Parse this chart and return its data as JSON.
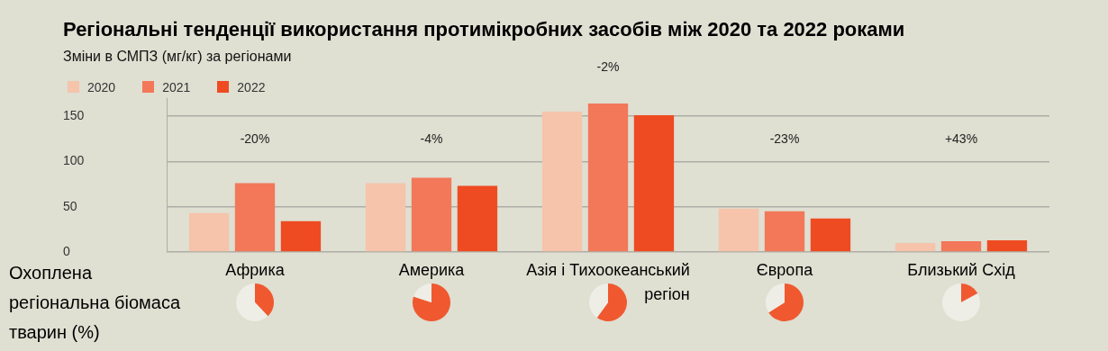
{
  "chart_data": [
    {
      "type": "bar",
      "title": "Регіональні тенденції використання протимікробних засобів між 2020 та 2022 роками",
      "subtitle": "Зміни в СМПЗ (мг/кг) за регіонами",
      "categories": [
        "Африка",
        "Америка",
        "Азія і Тихоокеанський регіон",
        "Європа",
        "Близький Схід"
      ],
      "series": [
        {
          "name": "2020",
          "color": "#f5c4ab",
          "values": [
            43,
            76,
            155,
            48,
            10
          ]
        },
        {
          "name": "2021",
          "color": "#f27859",
          "values": [
            76,
            82,
            164,
            45,
            12
          ]
        },
        {
          "name": "2022",
          "color": "#ef4b22",
          "values": [
            34,
            73,
            151,
            37,
            13
          ]
        }
      ],
      "ylim": [
        0,
        170
      ],
      "yticks": [
        0,
        50,
        100,
        150
      ],
      "grid": "y",
      "legend": "top left",
      "annotations": [
        "-20%",
        "-4%",
        "-2%",
        "-23%",
        "+43%",
        "Охоплена регіональна біомаса тварин (%)"
      ]
    },
    {
      "type": "pie",
      "categories": [
        null,
        null
      ],
      "values": [
        38,
        62
      ],
      "colors": [
        "#f0592f",
        "#eeede6"
      ]
    },
    {
      "type": "pie",
      "categories": [
        null,
        null
      ],
      "values": [
        80,
        20
      ],
      "colors": [
        "#f0592f",
        "#eeede6"
      ]
    },
    {
      "type": "pie",
      "categories": [
        null,
        null
      ],
      "values": [
        60,
        40
      ],
      "colors": [
        "#f0592f",
        "#eeede6"
      ]
    },
    {
      "type": "pie",
      "categories": [
        null,
        null
      ],
      "values": [
        66,
        34
      ],
      "colors": [
        "#f0592f",
        "#eeede6"
      ]
    },
    {
      "type": "pie",
      "categories": [
        null,
        null
      ],
      "values": [
        17,
        83
      ],
      "colors": [
        "#f0592f",
        "#eeede6"
      ]
    }
  ]
}
